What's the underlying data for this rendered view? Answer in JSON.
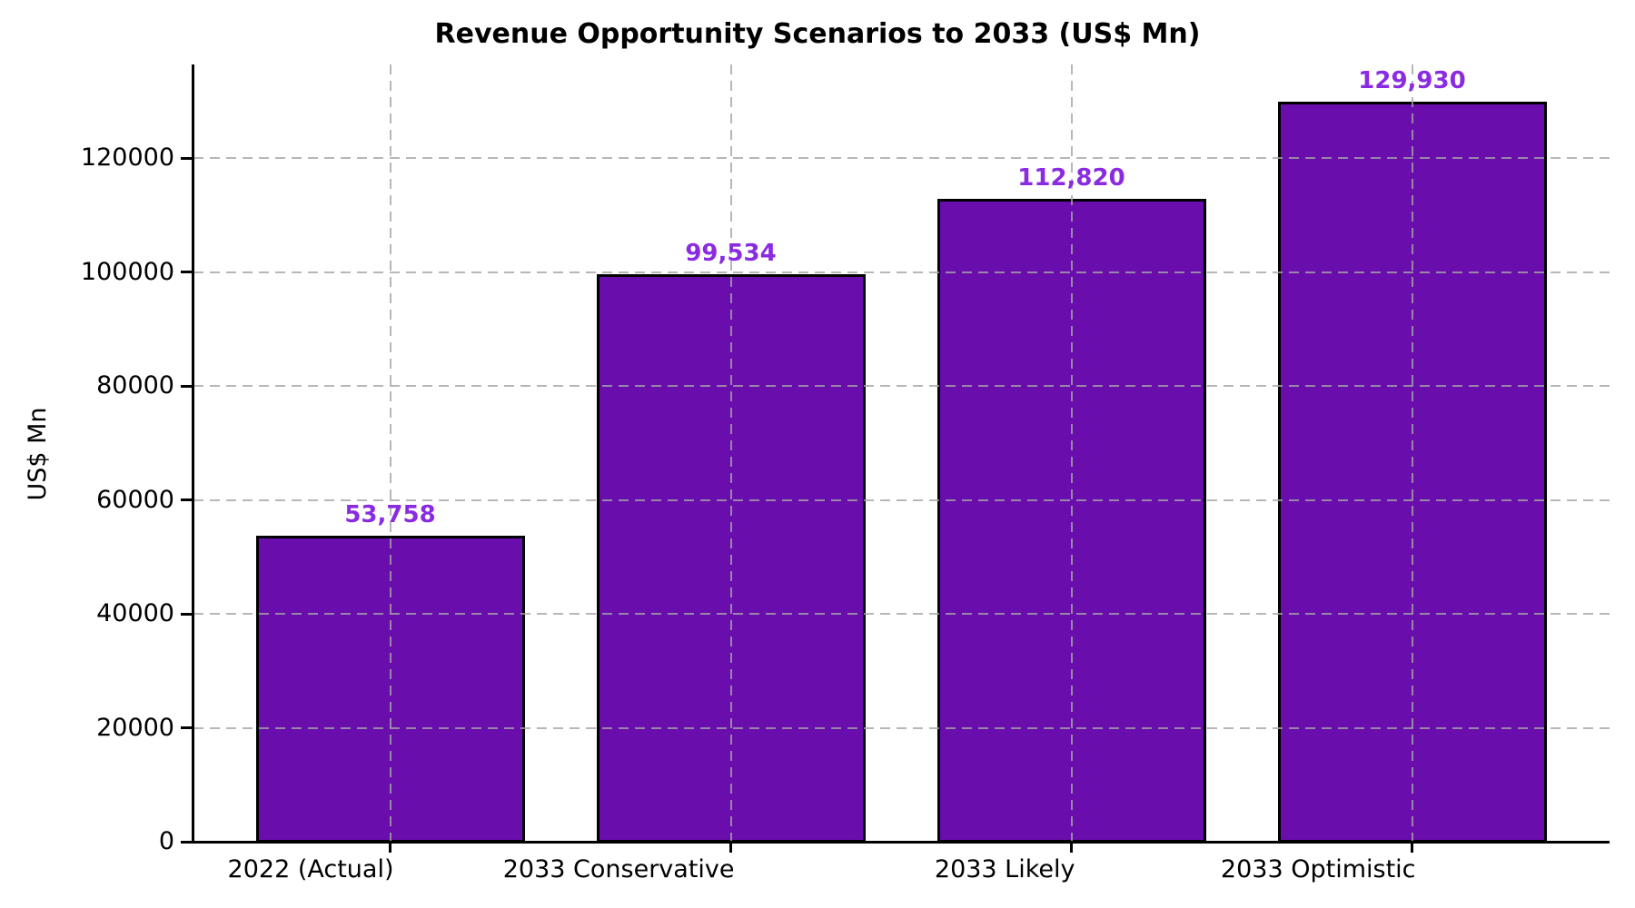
{
  "chart_data": {
    "type": "bar",
    "title": "Revenue Opportunity Scenarios to 2033 (US$ Mn)",
    "ylabel": "US$ Mn",
    "xlabel": "",
    "categories": [
      "2022 (Actual)",
      "2033 Conservative",
      "2033 Likely",
      "2033 Optimistic"
    ],
    "values": [
      53758,
      99534,
      112820,
      129930
    ],
    "value_labels": [
      "53,758",
      "99,534",
      "112,820",
      "129,930"
    ],
    "ylim": [
      0,
      136427
    ],
    "yticks": [
      0,
      20000,
      40000,
      60000,
      80000,
      100000,
      120000
    ],
    "ytick_labels": [
      "0",
      "20000",
      "40000",
      "60000",
      "80000",
      "100000",
      "120000"
    ],
    "grid": "dashed",
    "legend": "none",
    "colors": {
      "bar_fill": "#6A0DAD",
      "bar_edge": "#000000",
      "value_label": "#8A2BE2",
      "grid_line": "#a5a5a5",
      "axis": "#000000",
      "background": "#ffffff"
    }
  }
}
